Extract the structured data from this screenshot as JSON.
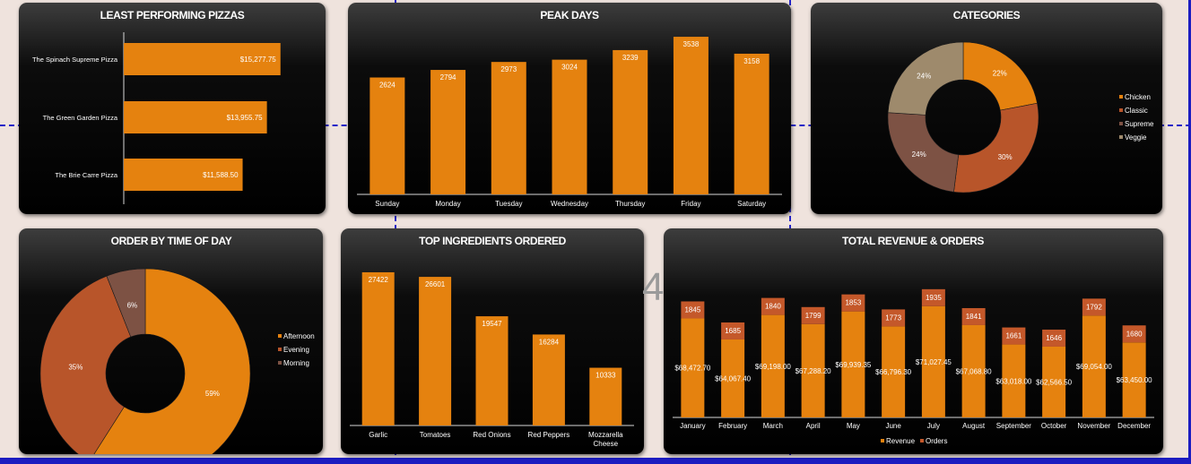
{
  "colors": {
    "orange": "#e5820f",
    "rust": "#b8552a",
    "brown": "#7d5244",
    "khaki": "#9e8a6c",
    "orders": "#c4582a",
    "white": "#ffffff",
    "axis": "#d8d8d8"
  },
  "page_number": "4",
  "chart_data": [
    {
      "id": "least",
      "type": "bar",
      "orientation": "horizontal",
      "title": "LEAST PERFORMING PIZZAS",
      "categories": [
        "The Spinach Supreme Pizza",
        "The Green Garden Pizza",
        "The Brie Carre Pizza"
      ],
      "values": [
        15277.75,
        13955.75,
        11588.5
      ],
      "value_labels": [
        "$15,277.75",
        "$13,955.75",
        "$11,588.50"
      ],
      "xlim": [
        0,
        16000
      ]
    },
    {
      "id": "peak",
      "type": "bar",
      "title": "PEAK DAYS",
      "categories": [
        "Sunday",
        "Monday",
        "Tuesday",
        "Wednesday",
        "Thursday",
        "Friday",
        "Saturday"
      ],
      "values": [
        2624,
        2794,
        2973,
        3024,
        3239,
        3538,
        3158
      ],
      "value_labels": [
        "2624",
        "2794",
        "2973",
        "3024",
        "3239",
        "3538",
        "3158"
      ],
      "ylim": [
        0,
        3700
      ]
    },
    {
      "id": "categories",
      "type": "pie",
      "donut": true,
      "title": "CATEGORIES",
      "labels": [
        "Chicken",
        "Classic",
        "Supreme",
        "Veggie"
      ],
      "values": [
        22,
        30,
        24,
        24
      ],
      "value_labels": [
        "22%",
        "30%",
        "24%",
        "24%"
      ],
      "colors": [
        "#e5820f",
        "#b8552a",
        "#7d5244",
        "#9e8a6c"
      ],
      "legend": "right"
    },
    {
      "id": "timeofday",
      "type": "pie",
      "donut": true,
      "title": "ORDER BY TIME OF DAY",
      "labels": [
        "Afternoon",
        "Evening",
        "Morning"
      ],
      "values": [
        59,
        35,
        6
      ],
      "value_labels": [
        "59%",
        "35%",
        "6%"
      ],
      "colors": [
        "#e5820f",
        "#b8552a",
        "#7d5244"
      ],
      "legend": "right"
    },
    {
      "id": "ingredients",
      "type": "bar",
      "title": "TOP INGREDIENTS ORDERED",
      "categories": [
        "Garlic",
        "Tomatoes",
        "Red Onions",
        "Red Peppers",
        "Mozzarella Cheese"
      ],
      "category_lines": [
        [
          "Garlic"
        ],
        [
          "Tomatoes"
        ],
        [
          "Red Onions"
        ],
        [
          "Red Peppers"
        ],
        [
          "Mozzarella",
          "Cheese"
        ]
      ],
      "values": [
        27422,
        26601,
        19547,
        16284,
        10333
      ],
      "value_labels": [
        "27422",
        "26601",
        "19547",
        "16284",
        "10333"
      ],
      "ylim": [
        0,
        29500
      ]
    },
    {
      "id": "revenue",
      "type": "bar",
      "stacked": true,
      "title": "TOTAL REVENUE & ORDERS",
      "categories": [
        "January",
        "February",
        "March",
        "April",
        "May",
        "June",
        "July",
        "August",
        "September",
        "October",
        "November",
        "December"
      ],
      "series": [
        {
          "name": "Revenue",
          "values": [
            68472.7,
            64067.4,
            69198.0,
            67288.2,
            69939.35,
            66796.3,
            71027.45,
            67068.8,
            63018.0,
            62566.5,
            69054.0,
            63450.0
          ],
          "value_labels": [
            "$68,472.70",
            "$64,067.40",
            "$69,198.00",
            "$67,288.20",
            "$69,939.35",
            "$66,796.30",
            "$71,027.45",
            "$67,068.80",
            "$63,018.00",
            "$62,566.50",
            "$69,054.00",
            "$63,450.00"
          ]
        },
        {
          "name": "Orders",
          "values": [
            1845,
            1685,
            1840,
            1799,
            1853,
            1773,
            1935,
            1841,
            1661,
            1646,
            1792,
            1680
          ],
          "value_labels": [
            "1845",
            "1685",
            "1840",
            "1799",
            "1853",
            "1773",
            "1935",
            "1841",
            "1661",
            "1646",
            "1792",
            "1680"
          ]
        }
      ],
      "legend": "bottom"
    }
  ]
}
